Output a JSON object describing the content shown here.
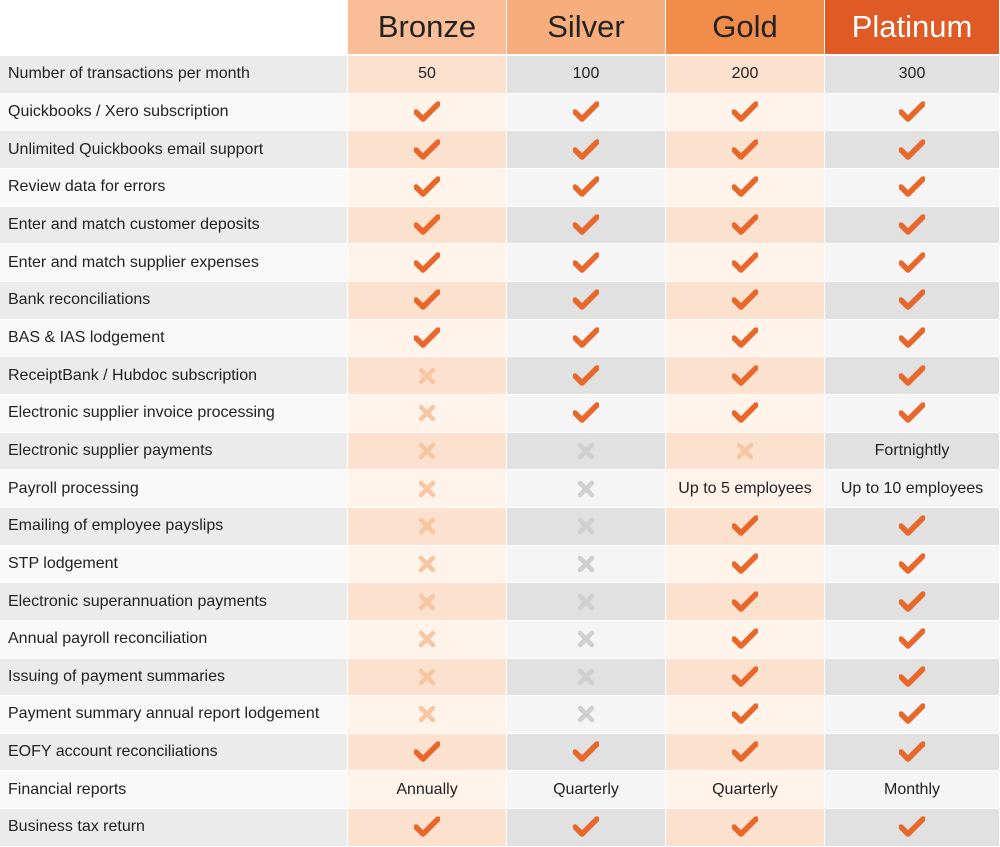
{
  "colors": {
    "accent": "#e8672a",
    "cross_bronze": "#f7c6a2",
    "cross_silver": "#cfcfcf"
  },
  "tiers": [
    "Bronze",
    "Silver",
    "Gold",
    "Platinum"
  ],
  "rows": [
    {
      "label": "Number of transactions per month",
      "cells": [
        "50",
        "100",
        "200",
        "300"
      ]
    },
    {
      "label": "Quickbooks / Xero subscription",
      "cells": [
        "check",
        "check",
        "check",
        "check"
      ]
    },
    {
      "label": "Unlimited Quickbooks email support",
      "cells": [
        "check",
        "check",
        "check",
        "check"
      ]
    },
    {
      "label": "Review data for errors",
      "cells": [
        "check",
        "check",
        "check",
        "check"
      ]
    },
    {
      "label": "Enter and match customer deposits",
      "cells": [
        "check",
        "check",
        "check",
        "check"
      ]
    },
    {
      "label": "Enter and match supplier expenses",
      "cells": [
        "check",
        "check",
        "check",
        "check"
      ]
    },
    {
      "label": "Bank reconciliations",
      "cells": [
        "check",
        "check",
        "check",
        "check"
      ]
    },
    {
      "label": "BAS & IAS lodgement",
      "cells": [
        "check",
        "check",
        "check",
        "check"
      ]
    },
    {
      "label": "ReceiptBank / Hubdoc subscription",
      "cells": [
        "cross",
        "check",
        "check",
        "check"
      ]
    },
    {
      "label": "Electronic supplier invoice processing",
      "cells": [
        "cross",
        "check",
        "check",
        "check"
      ]
    },
    {
      "label": "Electronic supplier payments",
      "cells": [
        "cross",
        "cross",
        "cross",
        "Fortnightly"
      ]
    },
    {
      "label": "Payroll processing",
      "cells": [
        "cross",
        "cross",
        "Up to 5 employees",
        "Up to 10 employees"
      ]
    },
    {
      "label": "Emailing of employee payslips",
      "cells": [
        "cross",
        "cross",
        "check",
        "check"
      ]
    },
    {
      "label": "STP lodgement",
      "cells": [
        "cross",
        "cross",
        "check",
        "check"
      ]
    },
    {
      "label": "Electronic superannuation payments",
      "cells": [
        "cross",
        "cross",
        "check",
        "check"
      ]
    },
    {
      "label": "Annual payroll reconciliation",
      "cells": [
        "cross",
        "cross",
        "check",
        "check"
      ]
    },
    {
      "label": "Issuing of payment summaries",
      "cells": [
        "cross",
        "cross",
        "check",
        "check"
      ]
    },
    {
      "label": "Payment summary annual report lodgement",
      "cells": [
        "cross",
        "cross",
        "check",
        "check"
      ]
    },
    {
      "label": "EOFY account reconciliations",
      "cells": [
        "check",
        "check",
        "check",
        "check"
      ]
    },
    {
      "label": "Financial reports",
      "cells": [
        "Annually",
        "Quarterly",
        "Quarterly",
        "Monthly"
      ]
    },
    {
      "label": "Business tax return",
      "cells": [
        "check",
        "check",
        "check",
        "check"
      ]
    }
  ]
}
